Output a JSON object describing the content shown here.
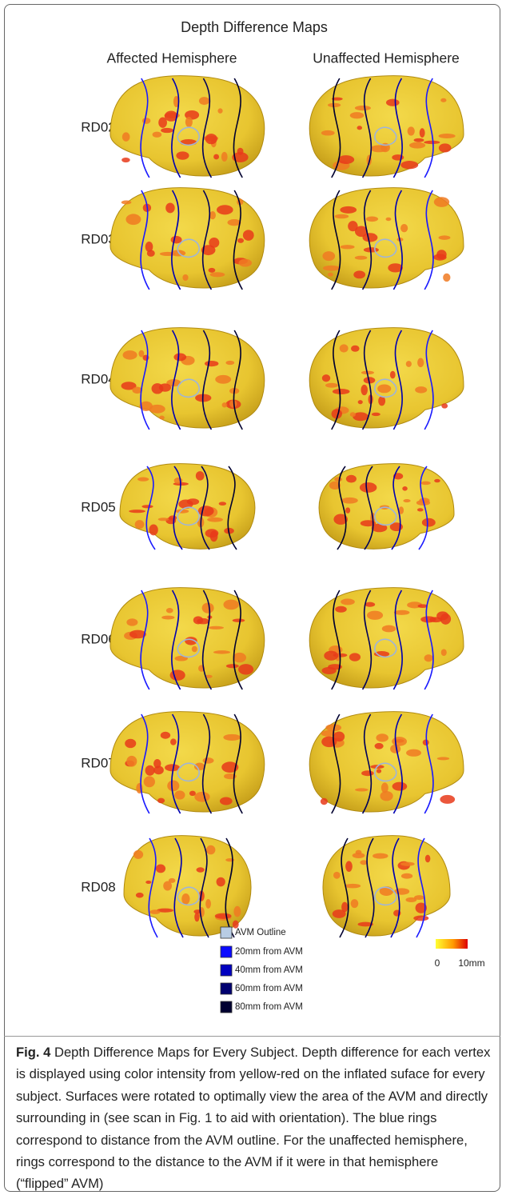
{
  "figure": {
    "title": "Depth Difference Maps",
    "column_headers": [
      "Affected Hemisphere",
      "Unaffected Hemisphere"
    ],
    "rows": [
      "RD02",
      "RD03",
      "RD04",
      "RD05",
      "RD06",
      "RD07",
      "RD08"
    ],
    "legend": {
      "items": [
        "AVM Outline",
        "20mm from AVM",
        "40mm from AVM",
        "60mm from AVM",
        "80mm from AVM"
      ],
      "colorbar": {
        "min_label": "0",
        "max_label": "10mm"
      }
    }
  },
  "caption": {
    "label": "Fig. 4",
    "text": "Depth Difference Maps for Every Subject. Depth difference for each vertex is displayed using color intensity from yellow-red on the inflated suface for every subject. Surfaces were rotated to optimally view the area of the AVM and directly surrounding in (see scan in Fig. 1 to aid with orientation). The blue rings correspond to distance from the AVM outline. For the unaffected hemisphere, rings correspond to the distance to the AVM if it were in that hemisphere (“flipped” AVM)"
  }
}
